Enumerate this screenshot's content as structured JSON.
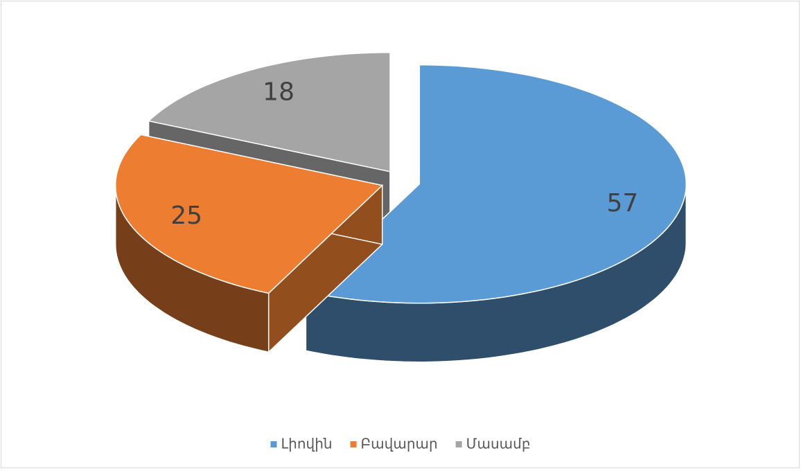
{
  "chart_data": {
    "type": "pie",
    "style": "3d-exploded",
    "categories": [
      "Լիովին",
      "Բավարար",
      "Մասամբ"
    ],
    "values": [
      57,
      25,
      18
    ],
    "colors": [
      "#5b9bd5",
      "#ed7d31",
      "#a5a5a5"
    ],
    "legend": "bottom"
  }
}
